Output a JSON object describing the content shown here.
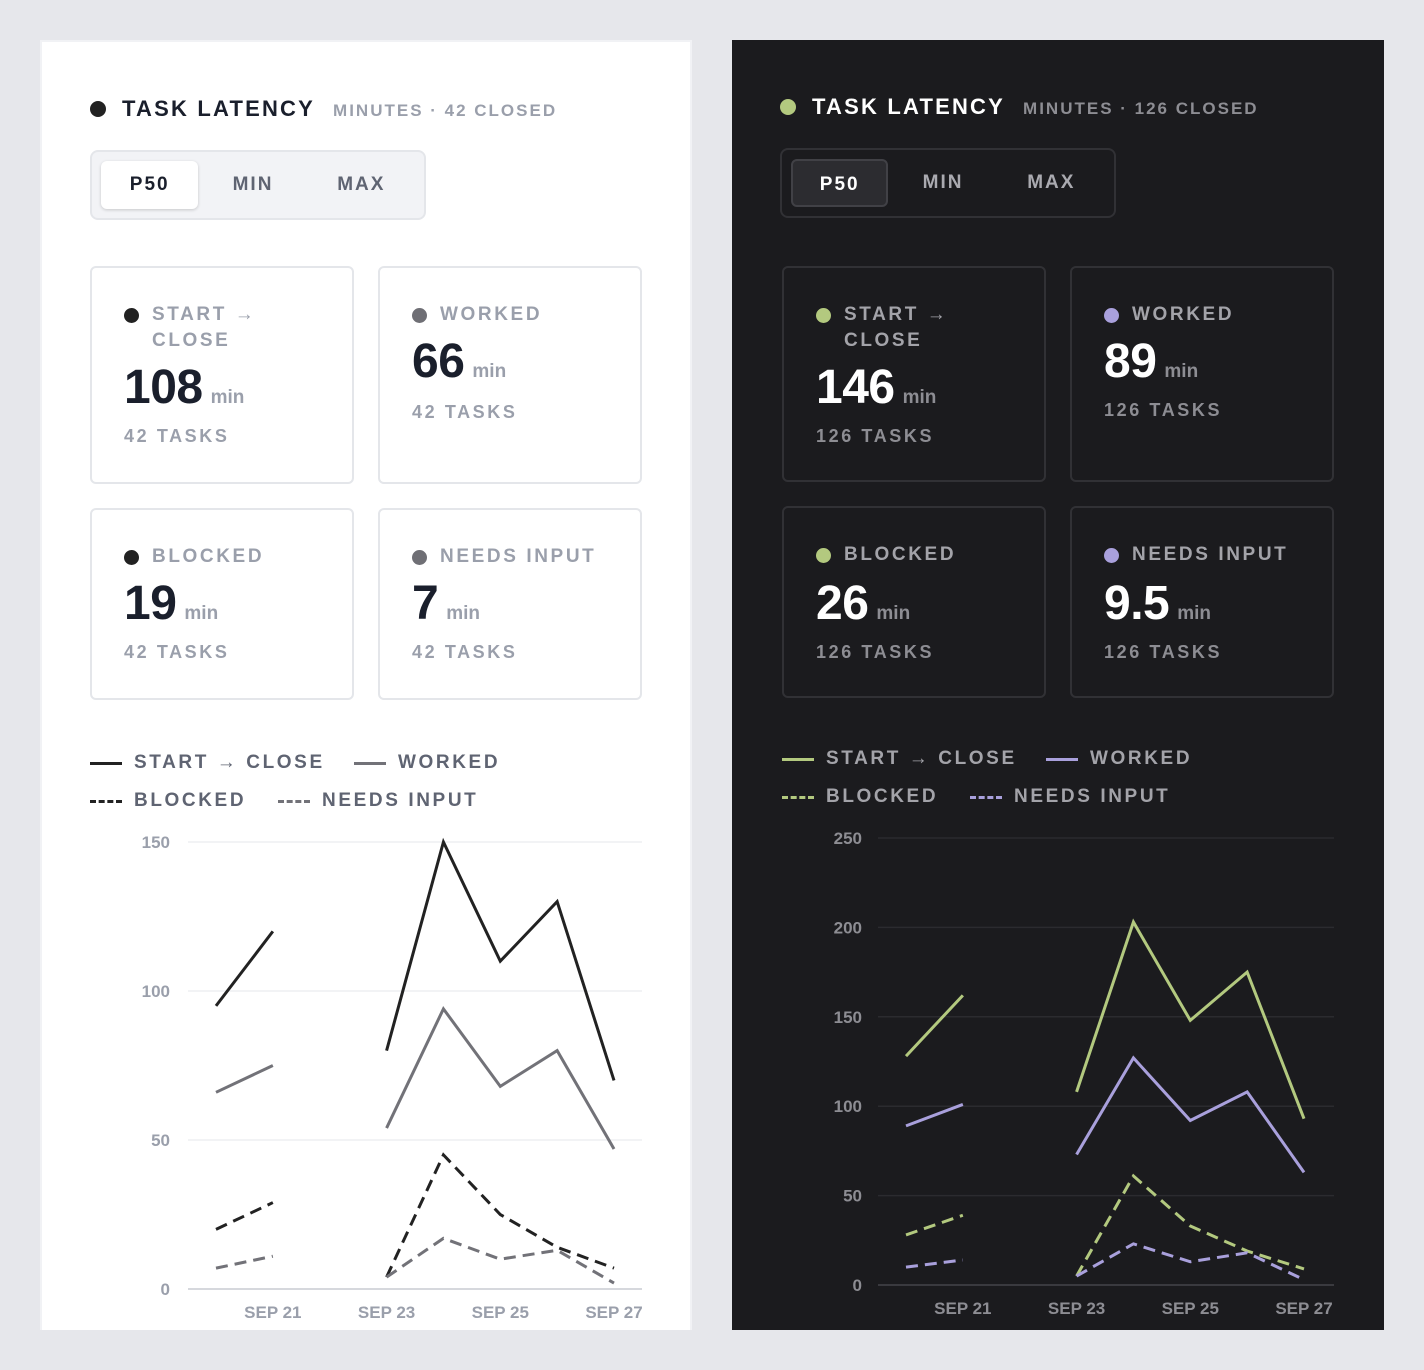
{
  "dashboards": [
    {
      "id": "light",
      "header": {
        "title": "TASK LATENCY",
        "subtitle": "MINUTES · 42 CLOSED"
      },
      "segmented": {
        "options": [
          "P50",
          "MIN",
          "MAX"
        ],
        "selected": "P50"
      },
      "stats": [
        {
          "label": "START → CLOSE",
          "value": "108",
          "unit": "min",
          "count": "42 TASKS"
        },
        {
          "label": "WORKED",
          "value": "66",
          "unit": "min",
          "count": "42 TASKS"
        },
        {
          "label": "BLOCKED",
          "value": "19",
          "unit": "min",
          "count": "42 TASKS"
        },
        {
          "label": "NEEDS INPUT",
          "value": "7",
          "unit": "min",
          "count": "42 TASKS"
        }
      ],
      "colors": {
        "primary": "#222222",
        "secondary": "#727278",
        "text": "#1a1f2c",
        "muted": "#9a9fab",
        "grid": "#eeeff2",
        "axis": "#d6d8dd",
        "dot_primary": "#222222",
        "dot_secondary": "#6f6f75"
      },
      "chart_data": {
        "type": "line",
        "x": [
          "Sep 20",
          "Sep 21",
          "Sep 22",
          "Sep 23",
          "Sep 24",
          "Sep 25",
          "Sep 26",
          "Sep 27"
        ],
        "x_tick_labels": [
          "SEP 21",
          "SEP 23",
          "SEP 25",
          "SEP 27"
        ],
        "y_ticks": [
          "0",
          "50",
          "100",
          "150"
        ],
        "ylim": [
          0,
          150
        ],
        "grid": true,
        "legend_position": "top-left",
        "series": [
          {
            "name": "START → CLOSE",
            "style": "solid",
            "color": "primary",
            "values": [
              95,
              120,
              null,
              80,
              150,
              110,
              130,
              70
            ]
          },
          {
            "name": "WORKED",
            "style": "solid",
            "color": "secondary",
            "values": [
              66,
              75,
              null,
              54,
              94,
              68,
              80,
              47
            ]
          },
          {
            "name": "BLOCKED",
            "style": "dashed",
            "color": "primary",
            "values": [
              20,
              29,
              null,
              4,
              45,
              25,
              14,
              7
            ]
          },
          {
            "name": "NEEDS INPUT",
            "style": "dashed",
            "color": "secondary",
            "values": [
              7,
              11,
              null,
              4,
              17,
              10,
              13,
              2
            ]
          }
        ]
      }
    },
    {
      "id": "dark",
      "header": {
        "title": "TASK LATENCY",
        "subtitle": "MINUTES · 126 CLOSED"
      },
      "segmented": {
        "options": [
          "P50",
          "MIN",
          "MAX"
        ],
        "selected": "P50"
      },
      "stats": [
        {
          "label": "START → CLOSE",
          "value": "146",
          "unit": "min",
          "count": "126 TASKS"
        },
        {
          "label": "WORKED",
          "value": "89",
          "unit": "min",
          "count": "126 TASKS"
        },
        {
          "label": "BLOCKED",
          "value": "26",
          "unit": "min",
          "count": "126 TASKS"
        },
        {
          "label": "NEEDS INPUT",
          "value": "9.5",
          "unit": "min",
          "count": "126 TASKS"
        }
      ],
      "colors": {
        "primary": "#b3c97f",
        "secondary": "#a9a0dc",
        "text": "#ffffff",
        "muted": "#8d8d93",
        "grid": "#2b2b2f",
        "axis": "#3a3a3f",
        "dot_primary": "#b3c97f",
        "dot_secondary": "#a9a0dc"
      },
      "chart_data": {
        "type": "line",
        "x": [
          "Sep 20",
          "Sep 21",
          "Sep 22",
          "Sep 23",
          "Sep 24",
          "Sep 25",
          "Sep 26",
          "Sep 27"
        ],
        "x_tick_labels": [
          "SEP 21",
          "SEP 23",
          "SEP 25",
          "SEP 27"
        ],
        "y_ticks": [
          "0",
          "50",
          "100",
          "150",
          "200",
          "250"
        ],
        "ylim": [
          0,
          250
        ],
        "grid": true,
        "legend_position": "top-left",
        "series": [
          {
            "name": "START → CLOSE",
            "style": "solid",
            "color": "primary",
            "values": [
              128,
              162,
              null,
              108,
              203,
              148,
              175,
              93
            ]
          },
          {
            "name": "WORKED",
            "style": "solid",
            "color": "secondary",
            "values": [
              89,
              101,
              null,
              73,
              127,
              92,
              108,
              63
            ]
          },
          {
            "name": "BLOCKED",
            "style": "dashed",
            "color": "primary",
            "values": [
              28,
              39,
              null,
              5,
              61,
              33,
              19,
              9
            ]
          },
          {
            "name": "NEEDS INPUT",
            "style": "dashed",
            "color": "secondary",
            "values": [
              10,
              14,
              null,
              5,
              23,
              13,
              18,
              3
            ]
          }
        ]
      }
    }
  ]
}
